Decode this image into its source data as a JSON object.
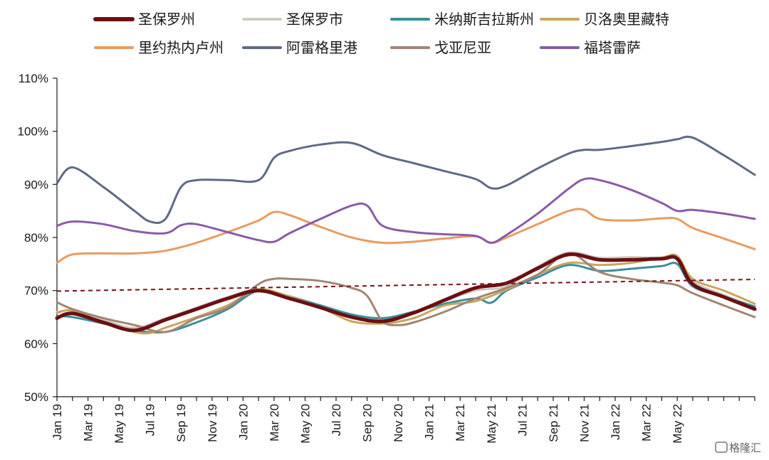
{
  "chart_data": {
    "type": "line",
    "title": "",
    "xlabel": "",
    "ylabel": "",
    "ylim": [
      0.5,
      1.1
    ],
    "y_ticks": [
      "50%",
      "60%",
      "70%",
      "80%",
      "90%",
      "100%",
      "110%"
    ],
    "x_ticks": [
      "Jan 19",
      "Mar 19",
      "May 19",
      "Jul 19",
      "Sep 19",
      "Nov 19",
      "Jan 20",
      "Mar 20",
      "May 20",
      "Jul 20",
      "Sep 20",
      "Nov 20",
      "Jan 21",
      "Mar 21",
      "May 21",
      "Jul 21",
      "Sep 21",
      "Nov 21",
      "Jan 22",
      "Mar 22",
      "May 22"
    ],
    "legend_position": "top",
    "grid": false,
    "series": [
      {
        "name": "圣保罗州",
        "color": "#6b0f12",
        "width": 5,
        "points": [
          [
            0,
            0.648
          ],
          [
            1,
            0.657
          ],
          [
            3,
            0.64
          ],
          [
            5,
            0.625
          ],
          [
            7,
            0.645
          ],
          [
            9,
            0.665
          ],
          [
            11,
            0.685
          ],
          [
            13,
            0.7
          ],
          [
            15,
            0.685
          ],
          [
            17,
            0.668
          ],
          [
            19,
            0.65
          ],
          [
            21,
            0.642
          ],
          [
            23,
            0.658
          ],
          [
            25,
            0.682
          ],
          [
            27,
            0.705
          ],
          [
            29,
            0.714
          ],
          [
            31,
            0.742
          ],
          [
            33,
            0.768
          ],
          [
            35,
            0.758
          ],
          [
            37,
            0.758
          ],
          [
            39,
            0.76
          ],
          [
            40,
            0.76
          ],
          [
            41,
            0.712
          ],
          [
            43,
            0.688
          ],
          [
            45,
            0.665
          ]
        ]
      },
      {
        "name": "圣保罗市",
        "color": "#c8c6bc",
        "width": 2.5,
        "points": [
          [
            0,
            0.66
          ],
          [
            1,
            0.662
          ],
          [
            3,
            0.645
          ],
          [
            5,
            0.63
          ],
          [
            7,
            0.648
          ],
          [
            9,
            0.668
          ],
          [
            11,
            0.688
          ],
          [
            13,
            0.703
          ],
          [
            15,
            0.69
          ],
          [
            17,
            0.672
          ],
          [
            19,
            0.655
          ],
          [
            21,
            0.645
          ],
          [
            23,
            0.66
          ],
          [
            25,
            0.68
          ],
          [
            27,
            0.7
          ],
          [
            29,
            0.708
          ],
          [
            31,
            0.745
          ],
          [
            33,
            0.772
          ],
          [
            35,
            0.762
          ],
          [
            37,
            0.763
          ],
          [
            39,
            0.762
          ],
          [
            40,
            0.762
          ],
          [
            41,
            0.718
          ],
          [
            43,
            0.692
          ],
          [
            45,
            0.67
          ]
        ]
      },
      {
        "name": "米纳斯吉拉斯州",
        "color": "#3b8f9c",
        "width": 3,
        "points": [
          [
            0,
            0.652
          ],
          [
            1,
            0.65
          ],
          [
            3,
            0.638
          ],
          [
            5,
            0.625
          ],
          [
            7,
            0.622
          ],
          [
            9,
            0.64
          ],
          [
            11,
            0.665
          ],
          [
            13,
            0.7
          ],
          [
            15,
            0.688
          ],
          [
            17,
            0.672
          ],
          [
            19,
            0.655
          ],
          [
            21,
            0.648
          ],
          [
            23,
            0.66
          ],
          [
            25,
            0.675
          ],
          [
            27,
            0.685
          ],
          [
            28,
            0.677
          ],
          [
            29,
            0.7
          ],
          [
            31,
            0.725
          ],
          [
            33,
            0.748
          ],
          [
            35,
            0.737
          ],
          [
            37,
            0.741
          ],
          [
            39,
            0.746
          ],
          [
            40,
            0.75
          ],
          [
            41,
            0.708
          ],
          [
            43,
            0.688
          ],
          [
            45,
            0.67
          ]
        ]
      },
      {
        "name": "贝洛奥里藏特",
        "color": "#c9a65f",
        "width": 3,
        "points": [
          [
            0,
            0.658
          ],
          [
            1,
            0.662
          ],
          [
            3,
            0.64
          ],
          [
            5,
            0.622
          ],
          [
            6,
            0.62
          ],
          [
            7,
            0.63
          ],
          [
            9,
            0.65
          ],
          [
            11,
            0.672
          ],
          [
            13,
            0.702
          ],
          [
            15,
            0.688
          ],
          [
            17,
            0.668
          ],
          [
            19,
            0.642
          ],
          [
            21,
            0.638
          ],
          [
            23,
            0.648
          ],
          [
            25,
            0.672
          ],
          [
            27,
            0.68
          ],
          [
            29,
            0.702
          ],
          [
            31,
            0.73
          ],
          [
            33,
            0.752
          ],
          [
            35,
            0.748
          ],
          [
            37,
            0.752
          ],
          [
            39,
            0.762
          ],
          [
            40,
            0.765
          ],
          [
            41,
            0.722
          ],
          [
            43,
            0.7
          ],
          [
            45,
            0.675
          ]
        ]
      },
      {
        "name": "里约热内卢州",
        "color": "#eb9b5f",
        "width": 3,
        "points": [
          [
            0,
            0.752
          ],
          [
            1,
            0.768
          ],
          [
            3,
            0.77
          ],
          [
            5,
            0.77
          ],
          [
            7,
            0.775
          ],
          [
            9,
            0.79
          ],
          [
            11,
            0.81
          ],
          [
            13,
            0.832
          ],
          [
            14,
            0.848
          ],
          [
            15,
            0.842
          ],
          [
            17,
            0.82
          ],
          [
            19,
            0.8
          ],
          [
            21,
            0.79
          ],
          [
            23,
            0.792
          ],
          [
            25,
            0.798
          ],
          [
            27,
            0.802
          ],
          [
            28,
            0.79
          ],
          [
            29,
            0.8
          ],
          [
            31,
            0.825
          ],
          [
            33,
            0.85
          ],
          [
            34,
            0.852
          ],
          [
            35,
            0.835
          ],
          [
            37,
            0.832
          ],
          [
            39,
            0.836
          ],
          [
            40,
            0.835
          ],
          [
            41,
            0.818
          ],
          [
            43,
            0.798
          ],
          [
            45,
            0.778
          ]
        ]
      },
      {
        "name": "阿雷格里港",
        "color": "#5f6a84",
        "width": 3,
        "points": [
          [
            0,
            0.902
          ],
          [
            1,
            0.932
          ],
          [
            3,
            0.895
          ],
          [
            5,
            0.85
          ],
          [
            6,
            0.83
          ],
          [
            7,
            0.835
          ],
          [
            8,
            0.895
          ],
          [
            9,
            0.908
          ],
          [
            11,
            0.908
          ],
          [
            13,
            0.908
          ],
          [
            14,
            0.95
          ],
          [
            15,
            0.963
          ],
          [
            17,
            0.975
          ],
          [
            19,
            0.978
          ],
          [
            21,
            0.955
          ],
          [
            23,
            0.94
          ],
          [
            25,
            0.925
          ],
          [
            27,
            0.91
          ],
          [
            28,
            0.893
          ],
          [
            29,
            0.898
          ],
          [
            31,
            0.93
          ],
          [
            33,
            0.958
          ],
          [
            34,
            0.965
          ],
          [
            35,
            0.965
          ],
          [
            37,
            0.972
          ],
          [
            39,
            0.98
          ],
          [
            40,
            0.985
          ],
          [
            41,
            0.988
          ],
          [
            43,
            0.955
          ],
          [
            45,
            0.918
          ]
        ]
      },
      {
        "name": "戈亚尼亚",
        "color": "#a28573",
        "width": 3,
        "points": [
          [
            0,
            0.678
          ],
          [
            1,
            0.665
          ],
          [
            3,
            0.648
          ],
          [
            5,
            0.635
          ],
          [
            7,
            0.622
          ],
          [
            9,
            0.648
          ],
          [
            11,
            0.668
          ],
          [
            13,
            0.712
          ],
          [
            14,
            0.722
          ],
          [
            15,
            0.722
          ],
          [
            17,
            0.718
          ],
          [
            19,
            0.705
          ],
          [
            20,
            0.69
          ],
          [
            21,
            0.642
          ],
          [
            22,
            0.635
          ],
          [
            23,
            0.64
          ],
          [
            25,
            0.66
          ],
          [
            27,
            0.685
          ],
          [
            29,
            0.705
          ],
          [
            31,
            0.73
          ],
          [
            33,
            0.77
          ],
          [
            35,
            0.735
          ],
          [
            37,
            0.722
          ],
          [
            39,
            0.715
          ],
          [
            40,
            0.71
          ],
          [
            41,
            0.695
          ],
          [
            43,
            0.672
          ],
          [
            45,
            0.65
          ]
        ]
      },
      {
        "name": "福塔雷萨",
        "color": "#8a5ba9",
        "width": 3,
        "points": [
          [
            0,
            0.822
          ],
          [
            1,
            0.83
          ],
          [
            3,
            0.825
          ],
          [
            5,
            0.812
          ],
          [
            7,
            0.808
          ],
          [
            8,
            0.823
          ],
          [
            9,
            0.825
          ],
          [
            11,
            0.81
          ],
          [
            13,
            0.795
          ],
          [
            14,
            0.792
          ],
          [
            15,
            0.808
          ],
          [
            17,
            0.835
          ],
          [
            19,
            0.86
          ],
          [
            20,
            0.86
          ],
          [
            21,
            0.822
          ],
          [
            23,
            0.81
          ],
          [
            25,
            0.806
          ],
          [
            27,
            0.803
          ],
          [
            28,
            0.79
          ],
          [
            29,
            0.805
          ],
          [
            31,
            0.845
          ],
          [
            33,
            0.892
          ],
          [
            34,
            0.91
          ],
          [
            35,
            0.908
          ],
          [
            37,
            0.89
          ],
          [
            39,
            0.865
          ],
          [
            40,
            0.85
          ],
          [
            41,
            0.852
          ],
          [
            43,
            0.845
          ],
          [
            45,
            0.835
          ]
        ]
      }
    ],
    "trendline": {
      "color": "#7a1218",
      "dash": true,
      "y_start": 0.699,
      "y_end": 0.721
    }
  },
  "watermark": "格隆汇"
}
